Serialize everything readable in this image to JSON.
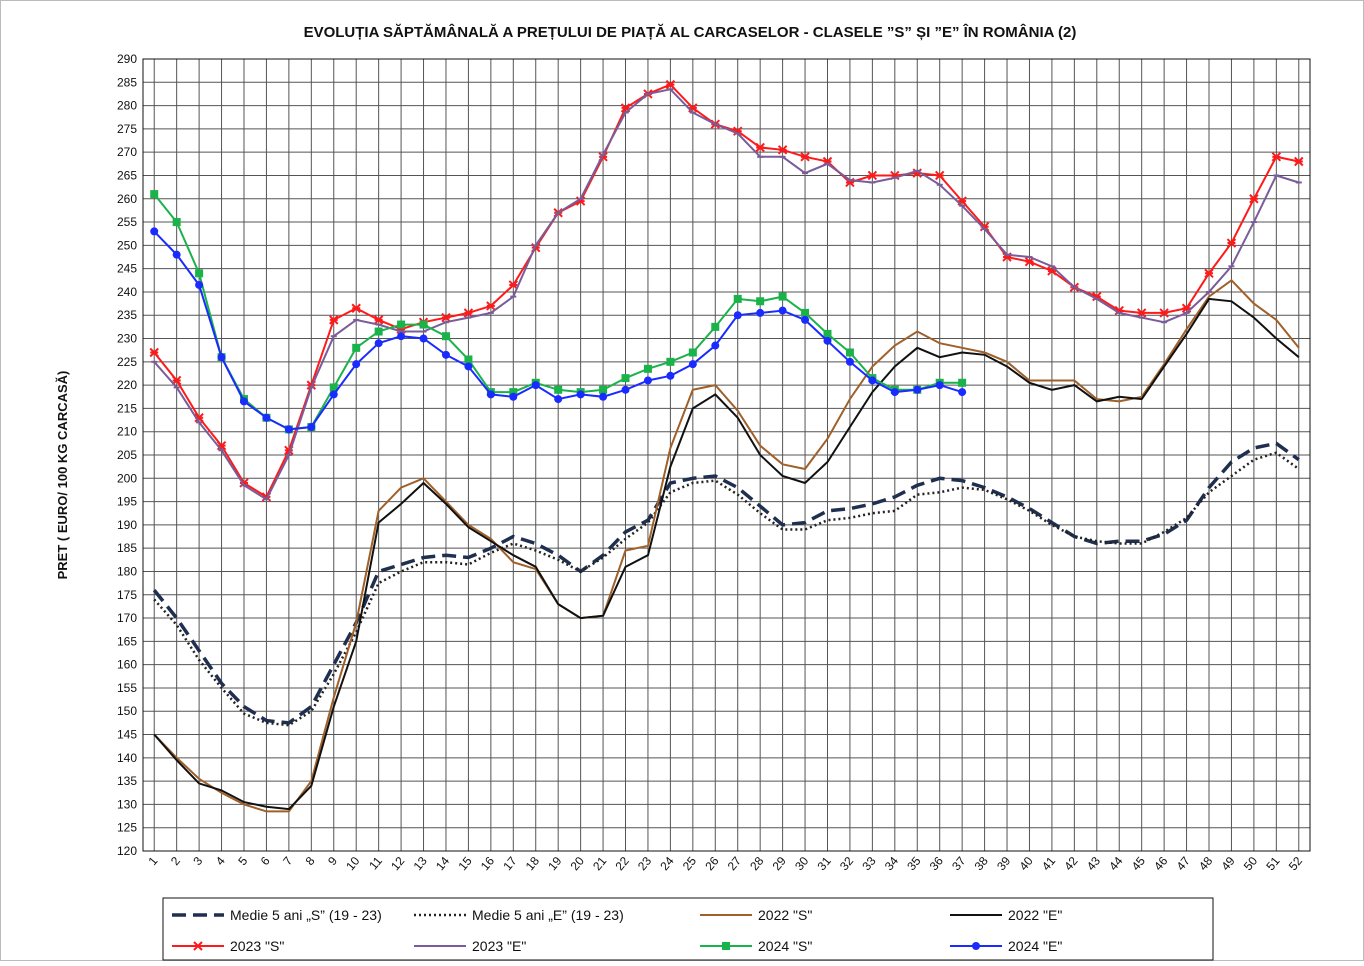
{
  "chart_data": {
    "type": "line",
    "title": "EVOLUȚIA SĂPTĂMÂNALĂ A PREȚULUI DE PIAȚĂ AL CARCASELOR - CLASELE ”S” ȘI ”E” ÎN ROMÂNIA (2)",
    "y_label": "PRET ( EURO/ 100 KG CARCASĂ)",
    "categories": [
      "1",
      "2",
      "3",
      "4",
      "5",
      "6",
      "7",
      "8",
      "9",
      "10",
      "11",
      "12",
      "13",
      "14",
      "15",
      "16",
      "17",
      "18",
      "19",
      "20",
      "21",
      "22",
      "23",
      "24",
      "25",
      "26",
      "27",
      "28",
      "29",
      "30",
      "31",
      "32",
      "33",
      "34",
      "35",
      "36",
      "37",
      "38",
      "39",
      "40",
      "41",
      "42",
      "43",
      "44",
      "45",
      "46",
      "47",
      "48",
      "49",
      "50",
      "51",
      "52"
    ],
    "ylim": [
      120,
      290
    ],
    "yticks": [
      120,
      125,
      130,
      135,
      140,
      145,
      150,
      155,
      160,
      165,
      170,
      175,
      180,
      185,
      190,
      195,
      200,
      205,
      210,
      215,
      220,
      225,
      230,
      235,
      240,
      245,
      250,
      255,
      260,
      265,
      270,
      275,
      280,
      285,
      290
    ],
    "grid": true,
    "series": [
      {
        "name": "Medie 5 ani „S” (19 - 23)",
        "color": "#1f2f4f",
        "style": "dashed",
        "marker": "none",
        "values": [
          176,
          170,
          163,
          156,
          151,
          148,
          147.5,
          151,
          160,
          169,
          180,
          181.5,
          183,
          183.5,
          183,
          185,
          187.5,
          186,
          183.5,
          180,
          183.5,
          188.5,
          191,
          199,
          200,
          200.5,
          198,
          194,
          190,
          190.5,
          193,
          193.5,
          194.5,
          196,
          198.5,
          200,
          199.5,
          198,
          196,
          193.5,
          190.5,
          187.5,
          186,
          186.5,
          186.5,
          188,
          191,
          198,
          203.5,
          206.5,
          207.5,
          204
        ]
      },
      {
        "name": "Medie 5 ani „E” (19 - 23)",
        "color": "#222222",
        "style": "dotted",
        "marker": "none",
        "values": [
          174,
          168.5,
          161,
          155,
          149.5,
          147.5,
          147,
          150,
          158,
          167,
          177.5,
          180,
          182,
          182,
          181.5,
          184,
          186,
          184.5,
          182.5,
          180,
          183,
          187,
          190.5,
          197,
          199,
          199.5,
          196.5,
          192.5,
          189,
          189,
          191,
          191.5,
          192.5,
          193,
          196.5,
          197,
          198,
          197.5,
          195.5,
          193,
          190,
          187.5,
          186.5,
          186,
          186,
          188.5,
          191.5,
          197,
          200.5,
          204,
          205.5,
          202
        ]
      },
      {
        "name": "2022 \"S\"",
        "color": "#a0602a",
        "style": "solid",
        "marker": "none",
        "values": [
          145,
          140,
          135.5,
          132.5,
          130,
          128.5,
          128.5,
          135,
          153,
          169,
          193,
          198,
          200,
          195,
          190,
          187,
          182,
          180.5,
          173,
          170,
          170.5,
          184.5,
          185.5,
          206.5,
          219,
          220,
          214.5,
          207,
          203,
          202,
          208.5,
          217,
          224,
          228.5,
          231.5,
          229,
          228,
          227,
          225,
          221,
          221,
          221,
          217,
          216.5,
          217.5,
          224.5,
          232,
          239,
          242.5,
          237.5,
          234,
          228
        ]
      },
      {
        "name": "2022 \"E\"",
        "color": "#111111",
        "style": "solid",
        "marker": "none",
        "values": [
          145,
          139.5,
          134.5,
          133,
          130.5,
          129.5,
          129,
          134,
          151,
          165,
          190.5,
          194.5,
          199,
          194.5,
          189.5,
          186.5,
          183.5,
          181,
          173,
          170,
          170.5,
          181,
          183.5,
          202.5,
          215,
          218,
          213,
          205,
          200.5,
          199,
          203.5,
          211,
          218.5,
          224,
          228,
          226,
          227,
          226.5,
          224,
          220.5,
          219,
          220,
          216.5,
          217.5,
          217,
          224,
          231,
          238.5,
          238,
          234.5,
          230,
          226
        ]
      },
      {
        "name": "2023 \"S\"",
        "color": "#ff1a1a",
        "style": "solid",
        "marker": "cross",
        "values": [
          227,
          221,
          213,
          207,
          199,
          196,
          206,
          220,
          234,
          236.5,
          234,
          232,
          233.5,
          234.5,
          235.5,
          237,
          241.5,
          249.5,
          257,
          259.5,
          269,
          279.5,
          282.5,
          284.5,
          279.5,
          276,
          274.5,
          271,
          270.5,
          269,
          268,
          263.5,
          265,
          265,
          265.5,
          265,
          259.5,
          254,
          247.5,
          246.5,
          244.5,
          241,
          239,
          236,
          235.5,
          235.5,
          236.5,
          244,
          250.5,
          260,
          269,
          268
        ]
      },
      {
        "name": "2023 \"E\"",
        "color": "#7a5c9a",
        "style": "solid",
        "marker": "tick",
        "values": [
          225,
          219.5,
          212,
          206,
          198.5,
          195.5,
          205,
          219.5,
          230.5,
          234,
          233,
          231.5,
          231.5,
          233.5,
          234.5,
          235.5,
          239,
          250,
          257,
          260,
          269.5,
          278.5,
          282.5,
          283.5,
          278.5,
          276,
          274,
          269,
          269,
          265.5,
          267.5,
          264,
          263.5,
          264.5,
          266,
          263,
          258.5,
          253.5,
          248,
          247.5,
          245.5,
          241,
          238.5,
          235.5,
          234.5,
          233.5,
          235.5,
          240,
          245.5,
          255,
          265,
          263.5
        ]
      },
      {
        "name": "2024 \"S\"",
        "color": "#19b34a",
        "style": "solid",
        "marker": "square",
        "values": [
          261,
          255,
          244,
          226,
          217,
          213,
          210.5,
          211,
          219.5,
          228,
          231.5,
          233,
          233,
          230.5,
          225.5,
          218.5,
          218.5,
          220.5,
          219,
          218.5,
          219,
          221.5,
          223.5,
          225,
          227,
          232.5,
          238.5,
          238,
          239,
          235.5,
          231,
          227,
          221.5,
          219,
          219,
          220.5,
          220.5,
          null,
          null,
          null,
          null,
          null,
          null,
          null,
          null,
          null,
          null,
          null,
          null,
          null,
          null,
          null
        ]
      },
      {
        "name": "2024 \"E\"",
        "color": "#1a2bff",
        "style": "solid",
        "marker": "circle",
        "values": [
          253,
          248,
          241.5,
          226,
          216.5,
          213,
          210.5,
          211,
          218,
          224.5,
          229,
          230.5,
          230,
          226.5,
          224,
          218,
          217.5,
          220,
          217,
          218,
          217.5,
          219,
          221,
          222,
          224.5,
          228.5,
          235,
          235.5,
          236,
          234,
          229.5,
          225,
          221,
          218.5,
          219,
          220,
          218.5,
          null,
          null,
          null,
          null,
          null,
          null,
          null,
          null,
          null,
          null,
          null,
          null,
          null,
          null,
          null
        ]
      }
    ]
  }
}
